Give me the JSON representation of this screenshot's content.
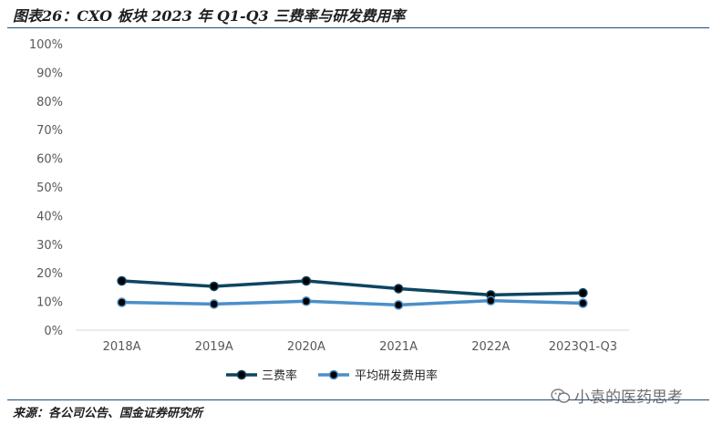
{
  "title": "图表26：CXO 板块 2023 年 Q1-Q3 三费率与研发费用率",
  "source": "来源：各公司公告、国金证券研究所",
  "watermark": "小袁的医药思考",
  "colors": {
    "series1": "#0e4560",
    "series2": "#4a8fc9",
    "axis": "#d9d9d9",
    "rule": "#1f4e79"
  },
  "chart_data": {
    "type": "line",
    "categories": [
      "2018A",
      "2019A",
      "2020A",
      "2021A",
      "2022A",
      "2023Q1-Q3"
    ],
    "series": [
      {
        "name": "三费率",
        "values": [
          17.2,
          15.3,
          17.2,
          14.5,
          12.3,
          13.0
        ]
      },
      {
        "name": "平均研发费用率",
        "values": [
          9.7,
          9.1,
          10.1,
          8.8,
          10.3,
          9.4
        ]
      }
    ],
    "ylim": [
      0,
      100
    ],
    "yticks": [
      "0%",
      "10%",
      "20%",
      "30%",
      "40%",
      "50%",
      "60%",
      "70%",
      "80%",
      "90%",
      "100%"
    ],
    "grid": false,
    "legend": "bottom"
  }
}
